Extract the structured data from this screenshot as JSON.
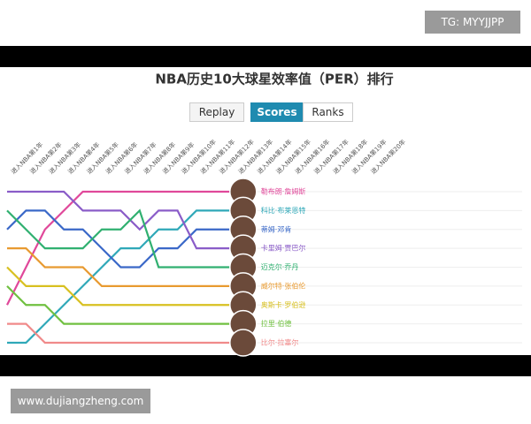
{
  "watermark_top": "TG: MYYJJPP",
  "watermark_bottom": "www.dujiangzheng.com",
  "buttons": [
    "Replay",
    "Scores",
    "Ranks"
  ],
  "chart_data": {
    "type": "line",
    "title": "NBA历史10大球星效率值（PER）排行",
    "categories": [
      "进入NBA第1年",
      "进入NBA第2年",
      "进入NBA第3年",
      "进入NBA第4年",
      "进入NBA第5年",
      "进入NBA第6年",
      "进入NBA第7年",
      "进入NBA第8年",
      "进入NBA第9年",
      "进入NBA第10年",
      "进入NBA第11年",
      "进入NBA第12年",
      "进入NBA第13年",
      "进入NBA第14年",
      "进入NBA第15年",
      "进入NBA第16年",
      "进入NBA第17年",
      "进入NBA第18年",
      "进入NBA第19年",
      "进入NBA第20年"
    ],
    "ylim": [
      1,
      9
    ],
    "series": [
      {
        "name": "勒布朗·詹姆斯",
        "color": "#e0489a",
        "values": [
          7,
          5,
          3,
          2,
          1,
          1,
          1,
          1,
          1,
          1,
          1,
          1,
          1,
          null,
          null,
          null,
          null,
          null,
          null,
          null
        ]
      },
      {
        "name": "科比·布莱恩特",
        "color": "#2fa8b8",
        "values": [
          9,
          9,
          8,
          7,
          6,
          5,
          4,
          4,
          3,
          3,
          2,
          2,
          2,
          null,
          null,
          null,
          null,
          null,
          null,
          null
        ]
      },
      {
        "name": "蒂姆·邓肯",
        "color": "#3a68c8",
        "values": [
          3,
          2,
          2,
          3,
          3,
          4,
          5,
          5,
          4,
          4,
          3,
          3,
          3,
          null,
          null,
          null,
          null,
          null,
          null,
          null
        ]
      },
      {
        "name": "卡里姆·贾巴尔",
        "color": "#8a5cc8",
        "values": [
          1,
          1,
          1,
          1,
          2,
          2,
          2,
          3,
          2,
          2,
          4,
          4,
          4,
          null,
          null,
          null,
          null,
          null,
          null,
          null
        ]
      },
      {
        "name": "迈克尔·乔丹",
        "color": "#30b070",
        "values": [
          2,
          3,
          4,
          4,
          4,
          3,
          3,
          2,
          5,
          5,
          5,
          5,
          5,
          null,
          null,
          null,
          null,
          null,
          null,
          null
        ]
      },
      {
        "name": "威尔特·张伯伦",
        "color": "#e89a30",
        "values": [
          4,
          4,
          5,
          5,
          5,
          6,
          6,
          6,
          6,
          6,
          6,
          6,
          6,
          null,
          null,
          null,
          null,
          null,
          null,
          null
        ]
      },
      {
        "name": "奥斯卡·罗伯逊",
        "color": "#d8c020",
        "values": [
          5,
          6,
          6,
          6,
          7,
          7,
          7,
          7,
          7,
          7,
          7,
          7,
          7,
          null,
          null,
          null,
          null,
          null,
          null,
          null
        ]
      },
      {
        "name": "拉里·伯德",
        "color": "#70c040",
        "values": [
          6,
          7,
          7,
          8,
          8,
          8,
          8,
          8,
          8,
          8,
          8,
          8,
          8,
          null,
          null,
          null,
          null,
          null,
          null,
          null
        ]
      },
      {
        "name": "比尔·拉塞尔",
        "color": "#f08a8a",
        "values": [
          8,
          8,
          9,
          9,
          9,
          9,
          9,
          9,
          9,
          9,
          9,
          9,
          9,
          null,
          null,
          null,
          null,
          null,
          null,
          null
        ]
      }
    ]
  }
}
